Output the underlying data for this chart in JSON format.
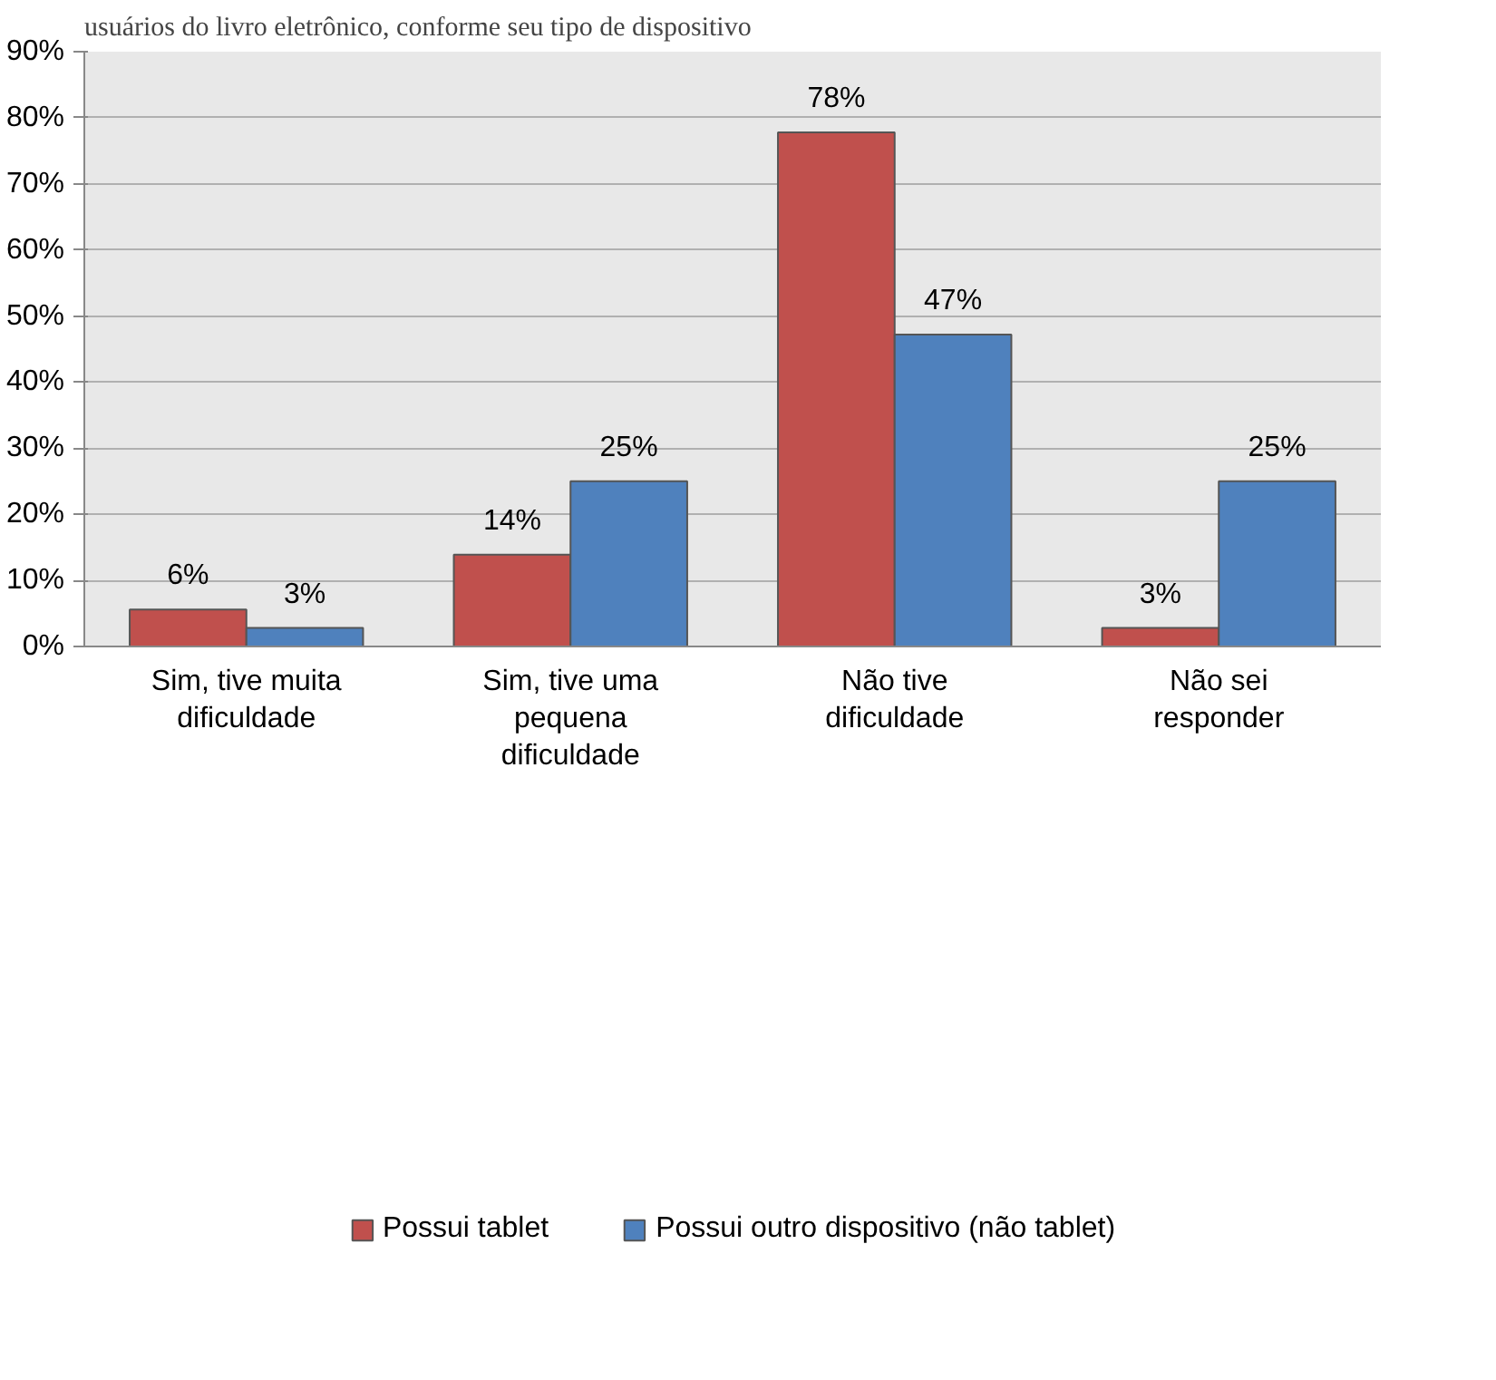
{
  "chart_data": {
    "type": "bar",
    "title": "usuários do livro eletrônico, conforme seu tipo de dispositivo",
    "categories": [
      "Sim, tive muita dificuldade",
      "Sim, tive uma pequena dificuldade",
      "Não tive dificuldade",
      "Não sei responder"
    ],
    "series": [
      {
        "name": "Possui tablet",
        "color": "#c0504d",
        "values": [
          5.6,
          13.9,
          77.8,
          2.8
        ],
        "value_labels": [
          "6%",
          "14%",
          "78%",
          "3%"
        ]
      },
      {
        "name": "Possui outro dispositivo (não tablet)",
        "color": "#4f81bd",
        "values": [
          2.8,
          25,
          47.2,
          25
        ],
        "value_labels": [
          "3%",
          "25%",
          "47%",
          "25%"
        ]
      }
    ],
    "ylim": [
      0,
      90
    ],
    "yticks": [
      {
        "value": 0,
        "label": "0%"
      },
      {
        "value": 10,
        "label": "10%"
      },
      {
        "value": 20,
        "label": "20%"
      },
      {
        "value": 30,
        "label": "30%"
      },
      {
        "value": 40,
        "label": "40%"
      },
      {
        "value": 50,
        "label": "50%"
      },
      {
        "value": 60,
        "label": "60%"
      },
      {
        "value": 70,
        "label": "70%"
      },
      {
        "value": 80,
        "label": "80%"
      },
      {
        "value": 90,
        "label": "90%"
      }
    ],
    "grid": "y",
    "legend": "bottom"
  }
}
